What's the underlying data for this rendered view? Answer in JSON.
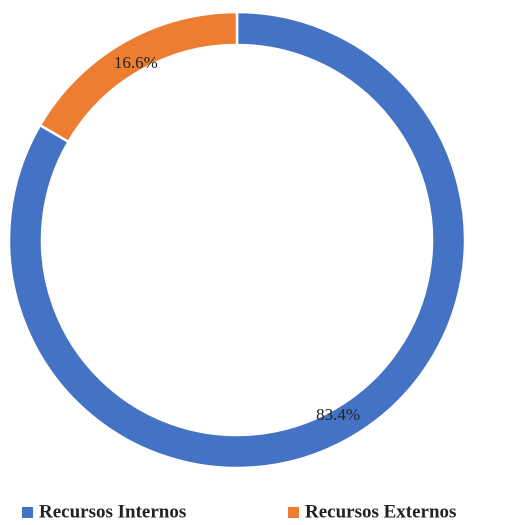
{
  "chart_data": {
    "type": "donut",
    "categories": [
      "Recursos Internos",
      "Recursos Externos"
    ],
    "values": [
      83.4,
      16.6
    ],
    "value_labels": [
      "83.4%",
      "16.6%"
    ],
    "colors": [
      "#4472c4",
      "#ed7d31"
    ],
    "legend": "bottom"
  }
}
